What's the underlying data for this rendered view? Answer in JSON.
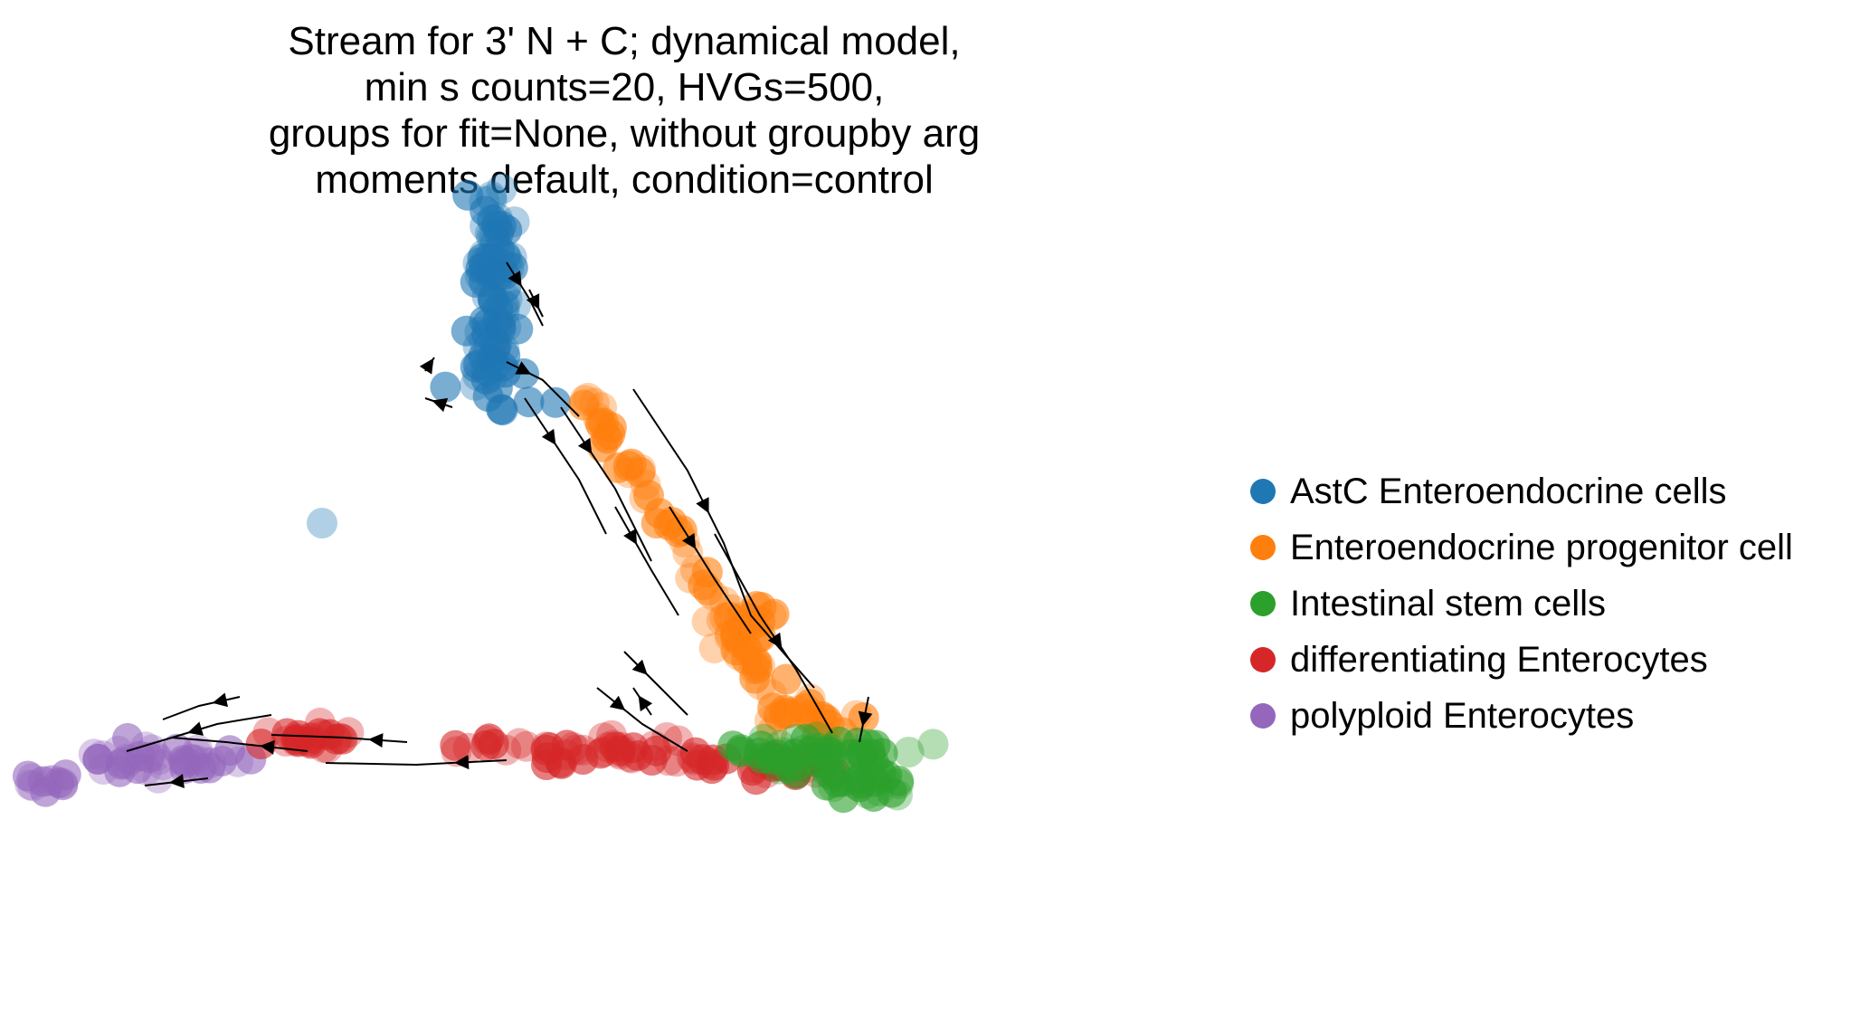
{
  "chart_data": {
    "type": "scatter",
    "title_lines": [
      "Stream for 3' N + C; dynamical model,",
      "min s counts=20, HVGs=500,",
      "groups for fit=None, without groupby arg",
      " moments default, condition=control"
    ],
    "xlabel": "",
    "ylabel": "",
    "axes_visible": false,
    "grid": false,
    "legend_position": "right",
    "series": [
      {
        "name": "AstC Enteroendocrine cells",
        "color": "#1f77b4"
      },
      {
        "name": "Enteroendocrine progenitor cell",
        "color": "#ff7f0e"
      },
      {
        "name": "Intestinal stem cells",
        "color": "#2ca02c"
      },
      {
        "name": "differentiating Enterocytes",
        "color": "#d62728"
      },
      {
        "name": "polyploid Enterocytes",
        "color": "#9467bd"
      }
    ],
    "overlay": "velocity streamlines with arrowheads (black)"
  }
}
